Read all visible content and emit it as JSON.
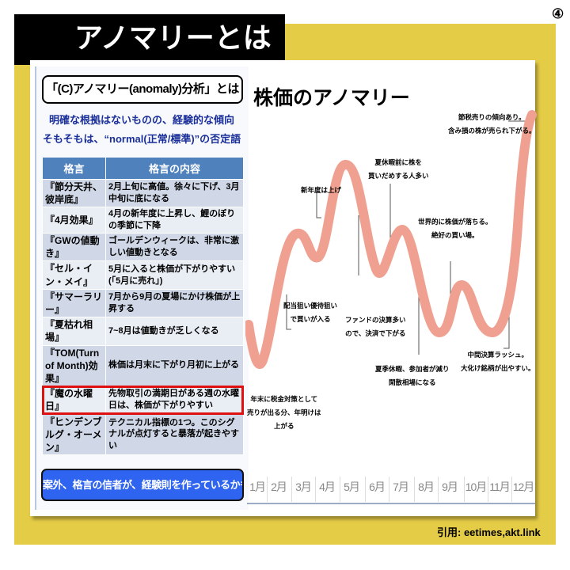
{
  "title": "アノマリーとは",
  "page_number": "④",
  "left": {
    "question": "「(C)アノマリー(anomaly)分析」とは",
    "sub1": "明確な根拠はないものの、経験的な傾向",
    "sub2": "そもそもは、“normal(正常/標準)”の否定語",
    "table": {
      "headers": [
        "格言",
        "格言の内容"
      ],
      "rows": [
        [
          "『節分天井、彼岸底』",
          "2月上旬に高値。徐々に下げ、3月中旬に底になる"
        ],
        [
          "『4月効果』",
          "4月の新年度に上昇し、鯉のぼりの季節に下降"
        ],
        [
          "『GWの値動き』",
          "ゴールデンウィークは、非常に激しい値動きとなる"
        ],
        [
          "『セル・イン・メイ』",
          "5月に入ると株価が下がりやすい(「5月に売れ」)"
        ],
        [
          "『サマーラリー』",
          "7月から9月の夏場にかけ株価が上昇する"
        ],
        [
          "『夏枯れ相場』",
          "7~8月は値動きが乏しくなる"
        ],
        [
          "『TOM(Turn of Month)効果』",
          "株価は月末に下がり月初に上がる"
        ],
        [
          "『魔の水曜日』",
          "先物取引の満期日がある週の水曜日は、株価が下がりやすい"
        ],
        [
          "『ヒンデンブルグ・オーメン』",
          "テクニカル指標の1つ。このシグナルが点灯すると暴落が起きやすい"
        ]
      ],
      "highlighted_row": 7,
      "highlight_color": "#e01010"
    },
    "conclusion": "案外、格言の信者が、経験則を作っているかも"
  },
  "chart_data": {
    "type": "line",
    "title": "株価のアノマリー",
    "categories": [
      "1月",
      "2月",
      "3月",
      "4月",
      "5月",
      "6月",
      "7月",
      "8月",
      "9月",
      "10月",
      "11月",
      "12月"
    ],
    "line_color": "#f0a090",
    "annotations": [
      {
        "text": "年末に税金対策として 売りが出る分、年明けは 上がる"
      },
      {
        "text": "配当狙い優待狙い で買いが入る"
      },
      {
        "text": "新年度は上げ"
      },
      {
        "text": "ファンドの決算多い ので、決済で下がる"
      },
      {
        "text": "夏休暇前に株を 買いだめする人多い"
      },
      {
        "text": "夏季休暇、参加者が減り 閑散相場になる"
      },
      {
        "text": "世界的に株価が落ちる。 絶好の買い場。"
      },
      {
        "text": "中間決算ラッシュ。 大化け銘柄が出やすい。"
      },
      {
        "text": "節税売りの傾向あり。 含み損の株が売られ下がる。"
      }
    ]
  },
  "citation": "引用: eetimes,akt.link"
}
